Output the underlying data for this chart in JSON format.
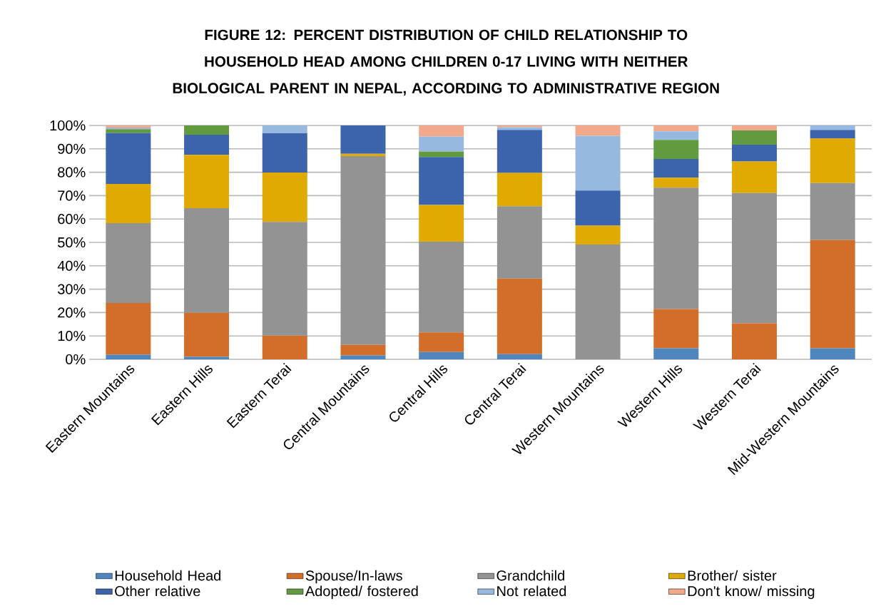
{
  "chart_data": {
    "type": "bar",
    "stacked": true,
    "title": "FIGURE 12: PERCENT DISTRIBUTION OF CHILD RELATIONSHIP TO HOUSEHOLD HEAD AMONG CHILDREN 0-17 LIVING WITH NEITHER BIOLOGICAL PARENT IN NEPAL, ACCORDING TO ADMINISTRATIVE REGION",
    "categories": [
      "Eastern Mountains",
      "Eastern Hills",
      "Eastern Terai",
      "Central Mountains",
      "Central Hills",
      "Central Terai",
      "Western Mountains",
      "Western Hills",
      "Western Terai",
      "Mid-Western Mountains"
    ],
    "series": [
      {
        "name": "Household Head",
        "color": "#4e86bd",
        "values": [
          2.0,
          1.1,
          0,
          1.7,
          3.1,
          2.2,
          0,
          4.7,
          0,
          4.7
        ]
      },
      {
        "name": "Spouse/In-laws",
        "color": "#d36e2a",
        "values": [
          22.1,
          18.8,
          10.1,
          4.5,
          8.4,
          32.3,
          0,
          16.8,
          15.4,
          46.3
        ]
      },
      {
        "name": "Grandchild",
        "color": "#939393",
        "values": [
          34.1,
          44.7,
          48.7,
          80.7,
          38.8,
          31.0,
          49.1,
          51.9,
          55.7,
          24.4
        ]
      },
      {
        "name": "Brother/ sister",
        "color": "#e0aa00",
        "values": [
          16.8,
          22.8,
          21.1,
          1.0,
          15.7,
          14.2,
          8.1,
          4.3,
          13.5,
          19.0
        ]
      },
      {
        "name": "Other relative",
        "color": "#3b64ad",
        "values": [
          21.7,
          8.6,
          16.8,
          12.1,
          20.5,
          18.4,
          15.0,
          8.0,
          7.2,
          3.7
        ]
      },
      {
        "name": "Adopted/ fostered",
        "color": "#629a3f",
        "values": [
          1.7,
          4.0,
          0,
          0,
          2.4,
          0,
          0,
          8.1,
          6.1,
          0
        ]
      },
      {
        "name": "Not related",
        "color": "#97b9e0",
        "values": [
          0.7,
          0,
          3.3,
          0,
          6.4,
          1.1,
          23.4,
          3.7,
          0,
          1.9
        ]
      },
      {
        "name": "Don't know/ missing",
        "color": "#f2a88a",
        "values": [
          0.9,
          0,
          0,
          0,
          4.7,
          0.8,
          4.4,
          2.5,
          2.1,
          0
        ]
      }
    ],
    "ylim": [
      0,
      100
    ],
    "yticks": [
      {
        "value": 0,
        "label": "0%"
      },
      {
        "value": 10,
        "label": "10%"
      },
      {
        "value": 20,
        "label": "20%"
      },
      {
        "value": 30,
        "label": "30%"
      },
      {
        "value": 40,
        "label": "40%"
      },
      {
        "value": 50,
        "label": "50%"
      },
      {
        "value": 60,
        "label": "60%"
      },
      {
        "value": 70,
        "label": "70%"
      },
      {
        "value": 80,
        "label": "80%"
      },
      {
        "value": 90,
        "label": "90%"
      },
      {
        "value": 100,
        "label": "100%"
      }
    ],
    "grid": "y",
    "legend": "bottom"
  }
}
